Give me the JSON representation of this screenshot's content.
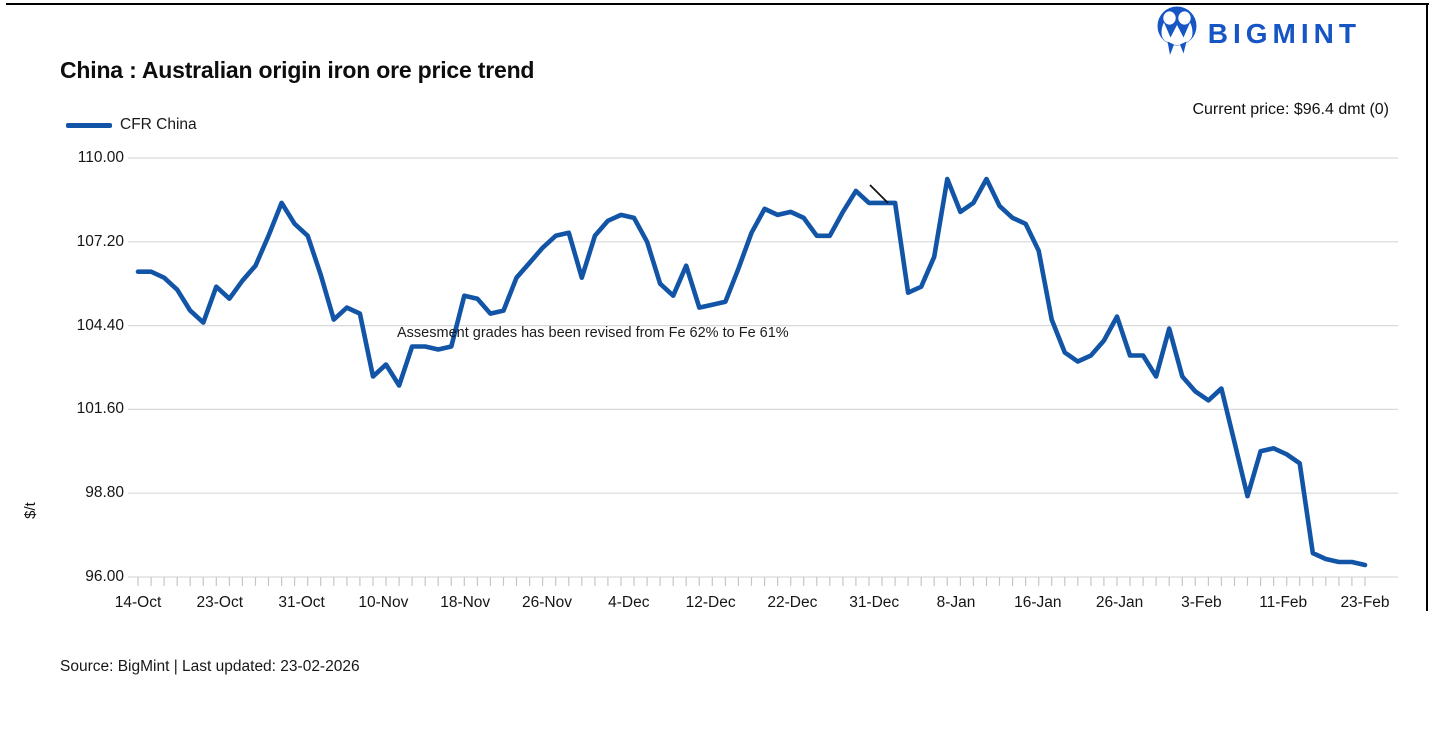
{
  "header": {
    "logo_text": "BIGMINT",
    "title": "China : Australian origin iron ore price trend",
    "current_price": "Current price: $96.4 dmt (0)"
  },
  "legend": {
    "series_label": "CFR China"
  },
  "annotation": {
    "text": "Assesment grades has been revised from Fe 62% to Fe 61%"
  },
  "footer": {
    "source": "Source: BigMint | Last updated: 23-02-2026"
  },
  "colors": {
    "line": "#1254a6",
    "logo_blue": "#1655c4",
    "grid": "#d9d9d9",
    "tick": "#c7c7c7",
    "text": "#1a1a1a"
  },
  "chart_data": {
    "type": "line",
    "title": "China : Australian origin iron ore price trend",
    "xlabel": "",
    "ylabel": "$/t",
    "ylim": [
      96.0,
      110.0
    ],
    "yticks": [
      110.0,
      107.2,
      104.4,
      101.6,
      98.8,
      96.0
    ],
    "ytick_labels": [
      "110.00",
      "107.20",
      "104.40",
      "101.60",
      "98.80",
      "96.00"
    ],
    "x_labels": [
      "14-Oct",
      "23-Oct",
      "31-Oct",
      "10-Nov",
      "18-Nov",
      "26-Nov",
      "4-Dec",
      "12-Dec",
      "22-Dec",
      "31-Dec",
      "8-Jan",
      "16-Jan",
      "26-Jan",
      "3-Feb",
      "11-Feb",
      "23-Feb"
    ],
    "grid": "horizontal",
    "legend_position": "top-left",
    "annotation": "Assesment grades has been revised from Fe 62% to Fe 61%",
    "current_price_value": 96.4,
    "current_price_change": 0,
    "series": [
      {
        "name": "CFR China",
        "values": [
          106.2,
          106.2,
          106.0,
          105.6,
          104.9,
          104.5,
          105.7,
          105.3,
          105.9,
          106.4,
          107.4,
          108.5,
          107.8,
          107.4,
          106.1,
          104.6,
          105.0,
          104.8,
          102.7,
          103.1,
          102.4,
          103.7,
          103.7,
          103.6,
          103.7,
          105.4,
          105.3,
          104.8,
          104.9,
          106.0,
          106.5,
          107.0,
          107.4,
          107.5,
          106.0,
          107.4,
          107.9,
          108.1,
          108.0,
          107.2,
          105.8,
          105.4,
          106.4,
          105.0,
          105.1,
          105.2,
          106.3,
          107.5,
          108.3,
          108.1,
          108.2,
          108.0,
          107.4,
          107.4,
          108.2,
          108.9,
          108.5,
          108.5,
          108.5,
          105.5,
          105.7,
          106.7,
          109.3,
          108.2,
          108.5,
          109.3,
          108.4,
          108.0,
          107.8,
          106.9,
          104.6,
          103.5,
          103.2,
          103.4,
          103.9,
          104.7,
          103.4,
          103.4,
          102.7,
          104.3,
          102.7,
          102.2,
          101.9,
          102.3,
          100.5,
          98.7,
          100.2,
          100.3,
          100.1,
          99.8,
          96.8,
          96.6,
          96.5,
          96.5,
          96.4
        ]
      }
    ]
  }
}
